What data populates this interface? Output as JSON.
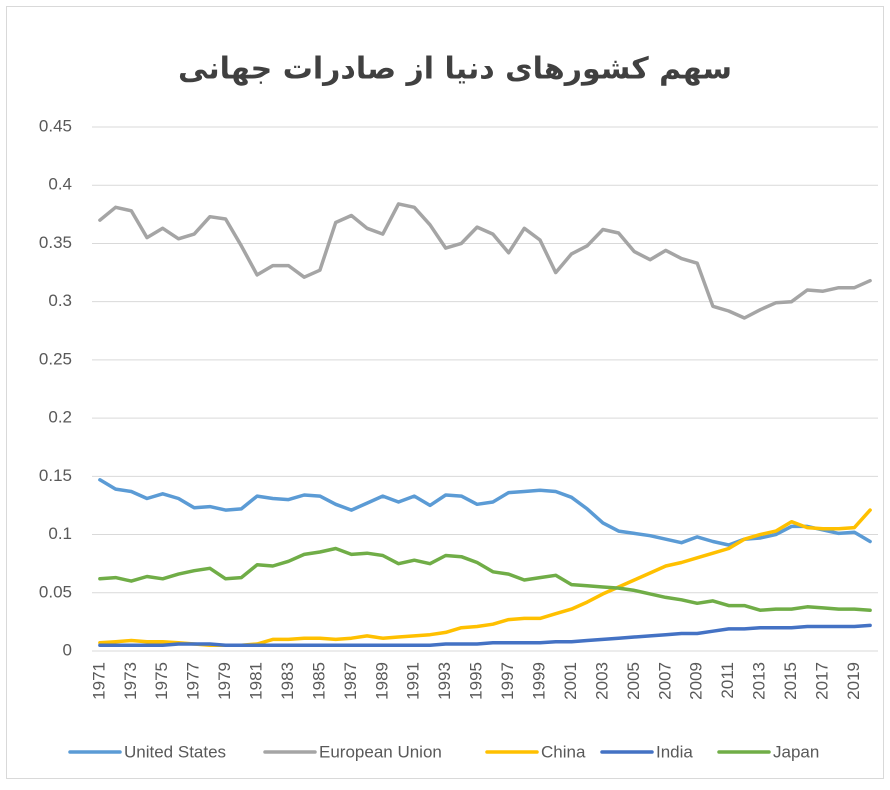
{
  "chart_data": {
    "type": "line",
    "title": "سهم کشورهای دنیا از صادرات جهانی",
    "categories": [
      "1971",
      null,
      "1973",
      null,
      "1975",
      null,
      "1977",
      null,
      "1979",
      null,
      "1981",
      null,
      "1983",
      null,
      "1985",
      null,
      "1987",
      null,
      "1989",
      null,
      "1991",
      null,
      "1993",
      null,
      "1995",
      null,
      "1997",
      null,
      "1999",
      null,
      "2001",
      null,
      "2003",
      null,
      "2005",
      null,
      "2007",
      null,
      "2009",
      null,
      "2011",
      null,
      "2013",
      null,
      "2015",
      null,
      "2017",
      null,
      "2019",
      null
    ],
    "series": [
      {
        "name": "United States",
        "color": "#5b9bd5",
        "values": [
          0.147,
          0.139,
          0.137,
          0.131,
          0.135,
          0.131,
          0.123,
          0.124,
          0.121,
          0.122,
          0.133,
          0.131,
          0.13,
          0.134,
          0.133,
          0.126,
          0.121,
          0.127,
          0.133,
          0.128,
          0.133,
          0.125,
          0.134,
          0.133,
          0.126,
          0.128,
          0.136,
          0.137,
          0.138,
          0.137,
          0.132,
          0.122,
          0.11,
          0.103,
          0.101,
          0.099,
          0.096,
          0.093,
          0.098,
          0.094,
          0.091,
          0.096,
          0.097,
          0.1,
          0.107,
          0.107,
          0.104,
          0.101,
          0.102,
          0.094
        ]
      },
      {
        "name": "European Union",
        "color": "#a5a5a5",
        "values": [
          0.37,
          0.381,
          0.378,
          0.355,
          0.363,
          0.354,
          0.358,
          0.373,
          0.371,
          0.348,
          0.323,
          0.331,
          0.331,
          0.321,
          0.327,
          0.368,
          0.374,
          0.363,
          0.358,
          0.384,
          0.381,
          0.366,
          0.346,
          0.35,
          0.364,
          0.358,
          0.342,
          0.363,
          0.353,
          0.325,
          0.341,
          0.348,
          0.362,
          0.359,
          0.343,
          0.336,
          0.344,
          0.337,
          0.333,
          0.296,
          0.292,
          0.286,
          0.293,
          0.299,
          0.3,
          0.31,
          0.309,
          0.312,
          0.312,
          0.318
        ]
      },
      {
        "name": "China",
        "color": "#ffc000",
        "values": [
          0.007,
          0.008,
          0.009,
          0.008,
          0.008,
          0.007,
          0.006,
          0.005,
          0.005,
          0.005,
          0.006,
          0.01,
          0.01,
          0.011,
          0.011,
          0.01,
          0.011,
          0.013,
          0.011,
          0.012,
          0.013,
          0.014,
          0.016,
          0.02,
          0.021,
          0.023,
          0.027,
          0.028,
          0.028,
          0.032,
          0.036,
          0.042,
          0.049,
          0.055,
          0.061,
          0.067,
          0.073,
          0.076,
          0.08,
          0.084,
          0.088,
          0.096,
          0.1,
          0.103,
          0.111,
          0.106,
          0.105,
          0.105,
          0.106,
          0.121
        ]
      },
      {
        "name": "India",
        "color": "#4472c4",
        "values": [
          0.005,
          0.005,
          0.005,
          0.005,
          0.005,
          0.006,
          0.006,
          0.006,
          0.005,
          0.005,
          0.005,
          0.005,
          0.005,
          0.005,
          0.005,
          0.005,
          0.005,
          0.005,
          0.005,
          0.005,
          0.005,
          0.005,
          0.006,
          0.006,
          0.006,
          0.007,
          0.007,
          0.007,
          0.007,
          0.008,
          0.008,
          0.009,
          0.01,
          0.011,
          0.012,
          0.013,
          0.014,
          0.015,
          0.015,
          0.017,
          0.019,
          0.019,
          0.02,
          0.02,
          0.02,
          0.021,
          0.021,
          0.021,
          0.021,
          0.022
        ]
      },
      {
        "name": "Japan",
        "color": "#70ad47",
        "values": [
          0.062,
          0.063,
          0.06,
          0.064,
          0.062,
          0.066,
          0.069,
          0.071,
          0.062,
          0.063,
          0.074,
          0.073,
          0.077,
          0.083,
          0.085,
          0.088,
          0.083,
          0.084,
          0.082,
          0.075,
          0.078,
          0.075,
          0.082,
          0.081,
          0.076,
          0.068,
          0.066,
          0.061,
          0.063,
          0.065,
          0.057,
          0.056,
          0.055,
          0.054,
          0.052,
          0.049,
          0.046,
          0.044,
          0.041,
          0.043,
          0.039,
          0.039,
          0.035,
          0.036,
          0.036,
          0.038,
          0.037,
          0.036,
          0.036,
          0.035
        ]
      }
    ],
    "ylim": [
      0,
      0.45
    ],
    "yticks": [
      0,
      0.05,
      0.1,
      0.15,
      0.2,
      0.25,
      0.3,
      0.35,
      0.4,
      0.45
    ],
    "grid": true,
    "legend": "bottom"
  }
}
